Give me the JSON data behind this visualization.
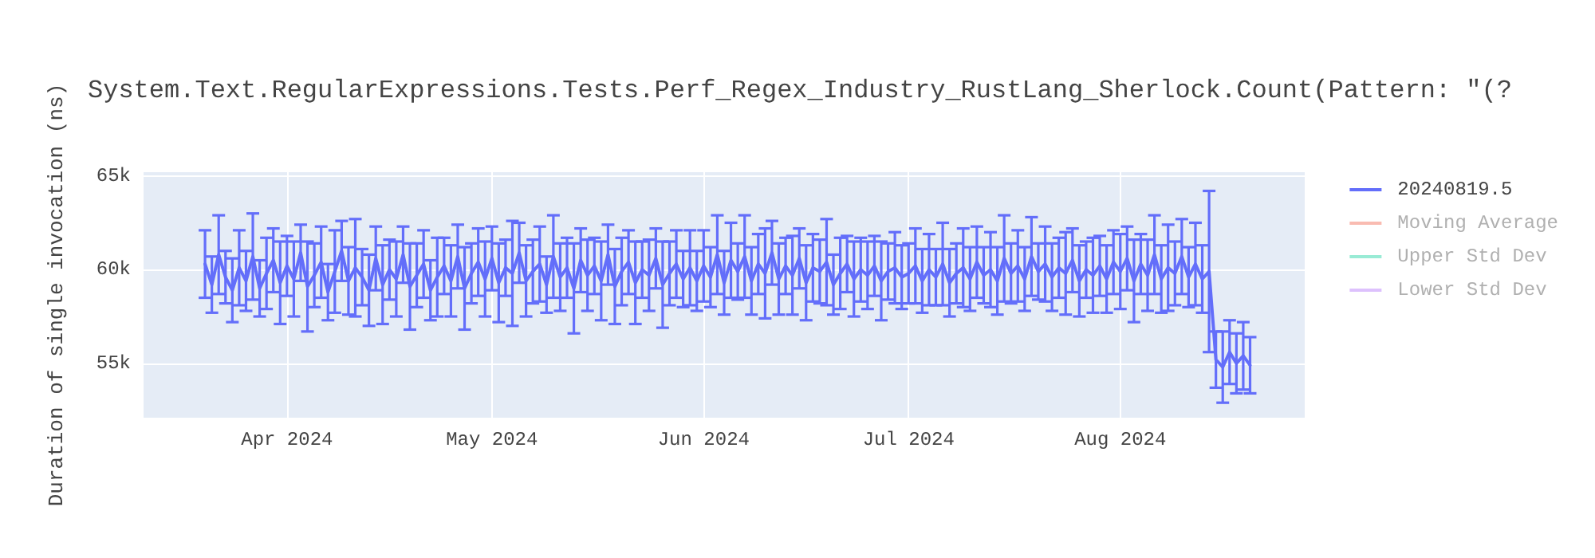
{
  "chart_data": {
    "type": "line",
    "title": "System.Text.RegularExpressions.Tests.Perf_Regex_Industry_RustLang_Sherlock.Count(Pattern: \"(?",
    "ylabel": "Duration of single invocation (ns)",
    "x": [
      "2024-03-20",
      "2024-03-21",
      "2024-03-22",
      "2024-03-23",
      "2024-03-24",
      "2024-03-25",
      "2024-03-26",
      "2024-03-27",
      "2024-03-28",
      "2024-03-29",
      "2024-03-30",
      "2024-03-31",
      "2024-04-01",
      "2024-04-02",
      "2024-04-03",
      "2024-04-04",
      "2024-04-05",
      "2024-04-06",
      "2024-04-07",
      "2024-04-08",
      "2024-04-09",
      "2024-04-10",
      "2024-04-11",
      "2024-04-12",
      "2024-04-13",
      "2024-04-14",
      "2024-04-15",
      "2024-04-16",
      "2024-04-17",
      "2024-04-18",
      "2024-04-19",
      "2024-04-20",
      "2024-04-21",
      "2024-04-22",
      "2024-04-23",
      "2024-04-24",
      "2024-04-25",
      "2024-04-26",
      "2024-04-27",
      "2024-04-28",
      "2024-04-29",
      "2024-04-30",
      "2024-05-01",
      "2024-05-02",
      "2024-05-03",
      "2024-05-04",
      "2024-05-05",
      "2024-05-06",
      "2024-05-07",
      "2024-05-08",
      "2024-05-09",
      "2024-05-10",
      "2024-05-11",
      "2024-05-12",
      "2024-05-13",
      "2024-05-14",
      "2024-05-15",
      "2024-05-16",
      "2024-05-17",
      "2024-05-18",
      "2024-05-19",
      "2024-05-20",
      "2024-05-21",
      "2024-05-22",
      "2024-05-23",
      "2024-05-24",
      "2024-05-25",
      "2024-05-26",
      "2024-05-27",
      "2024-05-28",
      "2024-05-29",
      "2024-05-30",
      "2024-05-31",
      "2024-06-01",
      "2024-06-02",
      "2024-06-03",
      "2024-06-04",
      "2024-06-05",
      "2024-06-06",
      "2024-06-07",
      "2024-06-08",
      "2024-06-09",
      "2024-06-10",
      "2024-06-11",
      "2024-06-12",
      "2024-06-13",
      "2024-06-14",
      "2024-06-15",
      "2024-06-16",
      "2024-06-17",
      "2024-06-18",
      "2024-06-19",
      "2024-06-20",
      "2024-06-21",
      "2024-06-22",
      "2024-06-23",
      "2024-06-24",
      "2024-06-25",
      "2024-06-26",
      "2024-06-27",
      "2024-06-28",
      "2024-06-29",
      "2024-06-30",
      "2024-07-01",
      "2024-07-02",
      "2024-07-03",
      "2024-07-04",
      "2024-07-05",
      "2024-07-06",
      "2024-07-07",
      "2024-07-08",
      "2024-07-09",
      "2024-07-10",
      "2024-07-11",
      "2024-07-12",
      "2024-07-13",
      "2024-07-14",
      "2024-07-15",
      "2024-07-16",
      "2024-07-17",
      "2024-07-18",
      "2024-07-19",
      "2024-07-20",
      "2024-07-21",
      "2024-07-22",
      "2024-07-23",
      "2024-07-24",
      "2024-07-25",
      "2024-07-26",
      "2024-07-27",
      "2024-07-28",
      "2024-07-29",
      "2024-07-30",
      "2024-07-31",
      "2024-08-01",
      "2024-08-02",
      "2024-08-03",
      "2024-08-04",
      "2024-08-05",
      "2024-08-06",
      "2024-08-07",
      "2024-08-08",
      "2024-08-09",
      "2024-08-10",
      "2024-08-11",
      "2024-08-12",
      "2024-08-13",
      "2024-08-14",
      "2024-08-15",
      "2024-08-16",
      "2024-08-17",
      "2024-08-18",
      "2024-08-19",
      "2024-08-20"
    ],
    "series": [
      {
        "name": "20240819.5",
        "color": "#636efa",
        "values": [
          60300,
          59200,
          60800,
          59600,
          58900,
          60100,
          59400,
          60700,
          59000,
          59800,
          60500,
          59300,
          60200,
          59500,
          60900,
          59100,
          59700,
          60400,
          58800,
          59900,
          61000,
          59400,
          60100,
          59600,
          58900,
          60600,
          59200,
          60000,
          59500,
          60800,
          59100,
          59700,
          60300,
          58900,
          59600,
          60200,
          59400,
          60700,
          59000,
          59800,
          60400,
          59500,
          60600,
          59300,
          60100,
          59800,
          60900,
          59400,
          59900,
          60300,
          59200,
          60700,
          59600,
          60100,
          59000,
          60500,
          59700,
          60200,
          59400,
          60800,
          59100,
          59900,
          60400,
          59300,
          60000,
          59700,
          60600,
          59200,
          59800,
          60300,
          59500,
          60100,
          59400,
          60200,
          59600,
          60800,
          59300,
          60500,
          59900,
          60700,
          59400,
          60300,
          59800,
          60900,
          59500,
          60200,
          59700,
          60600,
          59300,
          60100,
          59900,
          60400,
          59200,
          59800,
          60300,
          59500,
          60000,
          59700,
          60200,
          59400,
          59900,
          60100,
          59600,
          59800,
          60200,
          59400,
          60000,
          59600,
          60300,
          59300,
          59800,
          60100,
          59500,
          60400,
          59700,
          60000,
          59400,
          60600,
          59800,
          60200,
          59500,
          60700,
          59900,
          60300,
          59600,
          60100,
          59800,
          60500,
          59400,
          60000,
          59700,
          60200,
          59500,
          60400,
          59900,
          60600,
          59400,
          60300,
          59700,
          60800,
          59500,
          60100,
          59800,
          60700,
          59600,
          60300,
          59500,
          59900,
          55200,
          54800,
          55600,
          55000,
          55400,
          54900
        ],
        "errors": [
          1800,
          1500,
          2100,
          1400,
          1700,
          2000,
          1600,
          2300,
          1500,
          1900,
          1700,
          2200,
          1600,
          2000,
          1500,
          2400,
          1700,
          1900,
          1500,
          2200,
          1600,
          1800,
          2600,
          1500,
          1900,
          1700,
          2100,
          1600,
          2000,
          1500,
          2300,
          1700,
          1800,
          1600,
          2100,
          1500,
          1900,
          1700,
          2200,
          1600,
          1800,
          2000,
          1700,
          2100,
          1500,
          2800,
          1600,
          1900,
          1700,
          2000,
          1500,
          2200,
          1800,
          1600,
          2400,
          1700,
          1900,
          1500,
          2100,
          1600,
          2000,
          1800,
          1700,
          2200,
          1500,
          1900,
          1600,
          2300,
          1700,
          1800,
          1500,
          2000,
          1600,
          1900,
          1600,
          2100,
          1700,
          2000,
          1500,
          2200,
          1800,
          1600,
          2400,
          1700,
          1900,
          1500,
          2100,
          1600,
          2000,
          1800,
          1700,
          2300,
          1600,
          1900,
          1500,
          2000,
          1700,
          1800,
          1600,
          2100,
          1500,
          1900,
          1700,
          1600,
          2000,
          1700,
          1900,
          1500,
          2200,
          1800,
          1600,
          2100,
          1700,
          1900,
          1500,
          2000,
          1800,
          2300,
          1600,
          1900,
          1700,
          2100,
          1500,
          2000,
          1800,
          1600,
          2200,
          1700,
          1900,
          1500,
          2000,
          1600,
          1800,
          1700,
          2000,
          1700,
          2200,
          1600,
          1900,
          2100,
          1800,
          2300,
          1700,
          2000,
          1600,
          2200,
          1800,
          4300,
          1500,
          1900,
          1700,
          1600,
          1800,
          1500
        ]
      },
      {
        "name": "Moving Average",
        "color": "#ef553b",
        "values": [
          null,
          null,
          null,
          null,
          null,
          null,
          null,
          null,
          null,
          null,
          null,
          null,
          null,
          null,
          null,
          null,
          null,
          null,
          null,
          null,
          null,
          null,
          null,
          null,
          null,
          null,
          null,
          null,
          null,
          null,
          null,
          null,
          null,
          null,
          null,
          null,
          null,
          null,
          null,
          null,
          null,
          null,
          null,
          null,
          null,
          null,
          null,
          null,
          null,
          null,
          null,
          null,
          null,
          null,
          null,
          null,
          null,
          null,
          null,
          null,
          null,
          null,
          null,
          null,
          null,
          null,
          null,
          null,
          null,
          null,
          null,
          null,
          null,
          null,
          null,
          null,
          null,
          null,
          null,
          null,
          null,
          null,
          null,
          null,
          null,
          null,
          null,
          null,
          null,
          null,
          null,
          null,
          null,
          null,
          null,
          null,
          null,
          null,
          null,
          null,
          null,
          null,
          null,
          null,
          null,
          null,
          null,
          null,
          null,
          null,
          null,
          null,
          null,
          null,
          null,
          null,
          null,
          null,
          null,
          null,
          null,
          null,
          null,
          null,
          null,
          null,
          null,
          null,
          null,
          null,
          null,
          null,
          null,
          null,
          null,
          null,
          null,
          null,
          null,
          null,
          null,
          null,
          null,
          null,
          null,
          null,
          null,
          null,
          null,
          null,
          null,
          null,
          null,
          null
        ]
      },
      {
        "name": "Upper Std Dev",
        "color": "#00cc96",
        "values": [
          null,
          null,
          null,
          null,
          null,
          null,
          null,
          null,
          null,
          null,
          null,
          null,
          null,
          null,
          null,
          null,
          null,
          null,
          null,
          null,
          null,
          null,
          null,
          null,
          null,
          null,
          null,
          null,
          null,
          null,
          null,
          null,
          null,
          null,
          null,
          null,
          null,
          null,
          null,
          null,
          null,
          null,
          null,
          null,
          null,
          null,
          null,
          null,
          null,
          null,
          null,
          null,
          null,
          null,
          null,
          null,
          null,
          null,
          null,
          null,
          null,
          null,
          null,
          null,
          null,
          null,
          null,
          null,
          null,
          null,
          null,
          null,
          null,
          null,
          null,
          null,
          null,
          null,
          null,
          null,
          null,
          null,
          null,
          null,
          null,
          null,
          null,
          null,
          null,
          null,
          null,
          null,
          null,
          null,
          null,
          null,
          null,
          null,
          null,
          null,
          null,
          null,
          null,
          null,
          null,
          null,
          null,
          null,
          null,
          null,
          null,
          null,
          null,
          null,
          null,
          null,
          null,
          null,
          null,
          null,
          null,
          null,
          null,
          null,
          null,
          null,
          null,
          null,
          null,
          null,
          null,
          null,
          null,
          null,
          null,
          null,
          null,
          null,
          null,
          null,
          null,
          null,
          null,
          null,
          null,
          null,
          null,
          null,
          null,
          null,
          null,
          null,
          null,
          null
        ]
      },
      {
        "name": "Lower Std Dev",
        "color": "#ab63fa",
        "values": [
          null,
          null,
          null,
          null,
          null,
          null,
          null,
          null,
          null,
          null,
          null,
          null,
          null,
          null,
          null,
          null,
          null,
          null,
          null,
          null,
          null,
          null,
          null,
          null,
          null,
          null,
          null,
          null,
          null,
          null,
          null,
          null,
          null,
          null,
          null,
          null,
          null,
          null,
          null,
          null,
          null,
          null,
          null,
          null,
          null,
          null,
          null,
          null,
          null,
          null,
          null,
          null,
          null,
          null,
          null,
          null,
          null,
          null,
          null,
          null,
          null,
          null,
          null,
          null,
          null,
          null,
          null,
          null,
          null,
          null,
          null,
          null,
          null,
          null,
          null,
          null,
          null,
          null,
          null,
          null,
          null,
          null,
          null,
          null,
          null,
          null,
          null,
          null,
          null,
          null,
          null,
          null,
          null,
          null,
          null,
          null,
          null,
          null,
          null,
          null,
          null,
          null,
          null,
          null,
          null,
          null,
          null,
          null,
          null,
          null,
          null,
          null,
          null,
          null,
          null,
          null,
          null,
          null,
          null,
          null,
          null,
          null,
          null,
          null,
          null,
          null,
          null,
          null,
          null,
          null,
          null,
          null,
          null,
          null,
          null,
          null,
          null,
          null,
          null,
          null,
          null,
          null,
          null,
          null,
          null,
          null,
          null,
          null,
          null,
          null,
          null,
          null,
          null,
          null
        ]
      }
    ],
    "xlim": [
      "2024-03-11",
      "2024-08-28"
    ],
    "xticks": [
      {
        "value": "2024-04-01",
        "label": "Apr 2024"
      },
      {
        "value": "2024-05-01",
        "label": "May 2024"
      },
      {
        "value": "2024-06-01",
        "label": "Jun 2024"
      },
      {
        "value": "2024-07-01",
        "label": "Jul 2024"
      },
      {
        "value": "2024-08-01",
        "label": "Aug 2024"
      }
    ],
    "ylim": [
      52100,
      65200
    ],
    "yticks": [
      {
        "value": 55000,
        "label": "55k"
      },
      {
        "value": 60000,
        "label": "60k"
      },
      {
        "value": 65000,
        "label": "65k"
      }
    ],
    "grid": true,
    "legend": "right"
  }
}
